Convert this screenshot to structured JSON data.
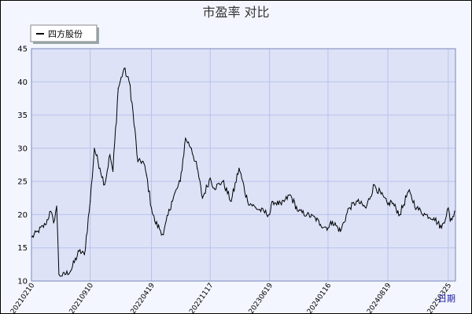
{
  "chart_data": {
    "type": "line",
    "title": "市盈率  对比",
    "xlabel": "日期",
    "ylabel": "",
    "ylim": [
      10,
      45
    ],
    "yticks": [
      10,
      15,
      20,
      25,
      30,
      35,
      40,
      45
    ],
    "xtick_labels": [
      "20210210",
      "20210910",
      "20220419",
      "20221117",
      "20230619",
      "20240116",
      "20240819",
      "20250325"
    ],
    "legend_position": "top-left",
    "grid": true,
    "colors": {
      "frame_border": "#000000",
      "outer_bg": "#f4f6ff",
      "plot_bg": "#dde2f7",
      "grid": "#b9c3ea",
      "line": "#000000",
      "xlabel": "#1a1aa6"
    },
    "series": [
      {
        "name": "四方股份",
        "x": [
          "20210210",
          "20210305",
          "20210401",
          "20210420",
          "20210501",
          "20210512",
          "20210520",
          "20210601",
          "20210701",
          "20210801",
          "20210820",
          "20210910",
          "20210925",
          "20211015",
          "20211101",
          "20211120",
          "20211201",
          "20211220",
          "20220110",
          "20220201",
          "20220301",
          "20220320",
          "20220401",
          "20220419",
          "20220501",
          "20220601",
          "20220701",
          "20220801",
          "20220820",
          "20220910",
          "20221001",
          "20221020",
          "20221117",
          "20221201",
          "20230101",
          "20230201",
          "20230301",
          "20230401",
          "20230501",
          "20230619",
          "20230701",
          "20230801",
          "20230901",
          "20231001",
          "20231101",
          "20231201",
          "20231220",
          "20240116",
          "20240201",
          "20240301",
          "20240401",
          "20240501",
          "20240601",
          "20240701",
          "20240819",
          "20240901",
          "20241001",
          "20241101",
          "20241201",
          "20250101",
          "20250201",
          "20250301",
          "20250325",
          "20250401",
          "20250420"
        ],
        "values": [
          16.5,
          17.5,
          18.5,
          20.5,
          18.8,
          21.3,
          11.0,
          10.8,
          11.5,
          14.5,
          14.0,
          22.0,
          30.0,
          27.0,
          24.5,
          29.0,
          26.5,
          39.0,
          42.0,
          39.5,
          28.0,
          28.0,
          26.0,
          21.0,
          19.0,
          17.0,
          22.0,
          25.0,
          31.5,
          30.0,
          27.0,
          22.5,
          25.5,
          24.0,
          25.0,
          22.0,
          27.0,
          22.0,
          21.0,
          20.0,
          22.0,
          21.5,
          23.0,
          20.5,
          20.0,
          19.5,
          18.5,
          18.0,
          19.0,
          17.5,
          21.0,
          22.0,
          21.0,
          24.5,
          21.5,
          22.0,
          20.0,
          23.5,
          21.0,
          20.0,
          19.5,
          18.0,
          21.0,
          19.0,
          20.5
        ]
      }
    ]
  }
}
